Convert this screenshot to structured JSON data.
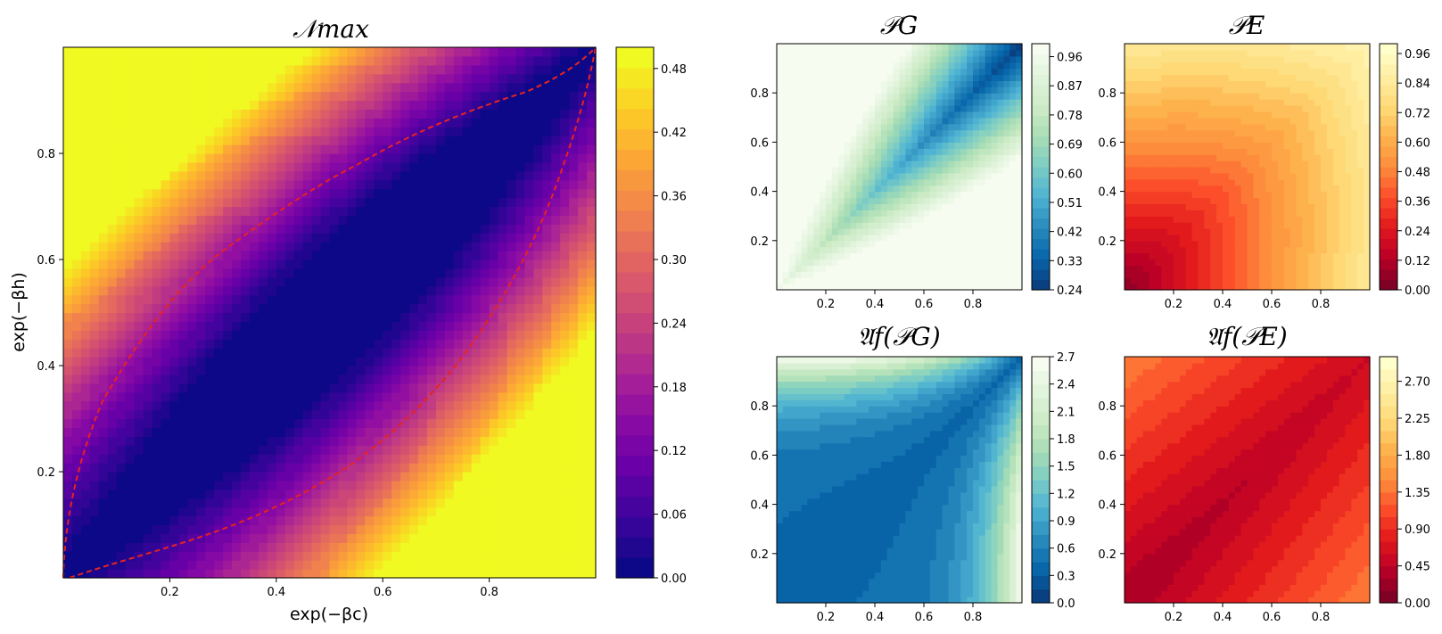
{
  "chart_data": [
    {
      "id": "nmax",
      "type": "heatmap",
      "title": "𝒩max",
      "xlabel": "exp(−βc)",
      "ylabel": "exp(−βh)",
      "xlim": [
        0,
        1
      ],
      "ylim": [
        0,
        1
      ],
      "xticks": [
        "0.2",
        "0.4",
        "0.6",
        "0.8"
      ],
      "yticks": [
        "0.2",
        "0.4",
        "0.6",
        "0.8"
      ],
      "colormap": "plasma",
      "colorbar": {
        "min": 0,
        "max": 0.5,
        "ticks": [
          "0.00",
          "0.06",
          "0.12",
          "0.18",
          "0.24",
          "0.30",
          "0.36",
          "0.42",
          "0.48"
        ]
      },
      "overlay": {
        "style": "dashed",
        "color": "#e8231f",
        "note": "boundary where 𝒩max = 0"
      },
      "colors": {
        "low": "#1e0a8c",
        "mid": "#cc4778",
        "high": "#f0f921"
      }
    },
    {
      "id": "pg",
      "type": "heatmap",
      "title": "𝒫G",
      "xlim": [
        0,
        1
      ],
      "ylim": [
        0,
        1
      ],
      "xticks": [
        "0.2",
        "0.4",
        "0.6",
        "0.8"
      ],
      "yticks": [
        "0.2",
        "0.4",
        "0.6",
        "0.8"
      ],
      "colormap": "GnBu_r",
      "colorbar": {
        "min": 0.24,
        "max": 1.0,
        "ticks": [
          "0.24",
          "0.33",
          "0.42",
          "0.51",
          "0.60",
          "0.69",
          "0.78",
          "0.87",
          "0.96"
        ]
      },
      "colors": {
        "low": "#084081",
        "mid": "#4eb3d3",
        "high": "#f7fcf0"
      }
    },
    {
      "id": "pe",
      "type": "heatmap",
      "title": "𝒫E",
      "xlim": [
        0,
        1
      ],
      "ylim": [
        0,
        1
      ],
      "xticks": [
        "0.2",
        "0.4",
        "0.6",
        "0.8"
      ],
      "yticks": [
        "0.2",
        "0.4",
        "0.6",
        "0.8"
      ],
      "colormap": "YlOrRd_r",
      "colorbar": {
        "min": 0,
        "max": 1.0,
        "ticks": [
          "0.00",
          "0.12",
          "0.24",
          "0.36",
          "0.48",
          "0.60",
          "0.72",
          "0.84",
          "0.96"
        ]
      },
      "colors": {
        "low": "#800026",
        "mid": "#fc4e2a",
        "high": "#ffffcc"
      }
    },
    {
      "id": "apg",
      "type": "heatmap",
      "title": "𝔄f(𝒫G)",
      "xlim": [
        0,
        1
      ],
      "ylim": [
        0,
        1
      ],
      "xticks": [
        "0.2",
        "0.4",
        "0.6",
        "0.8"
      ],
      "yticks": [
        "0.2",
        "0.4",
        "0.6",
        "0.8"
      ],
      "colormap": "GnBu_r",
      "colorbar": {
        "min": 0,
        "max": 2.7,
        "ticks": [
          "0.0",
          "0.3",
          "0.6",
          "0.9",
          "1.2",
          "1.5",
          "1.8",
          "2.1",
          "2.4",
          "2.7"
        ]
      },
      "colors": {
        "low": "#084081",
        "mid": "#4eb3d3",
        "high": "#f7fcf0"
      }
    },
    {
      "id": "ape",
      "type": "heatmap",
      "title": "𝔄f(𝒫E)",
      "xlim": [
        0,
        1
      ],
      "ylim": [
        0,
        1
      ],
      "xticks": [
        "0.2",
        "0.4",
        "0.6",
        "0.8"
      ],
      "yticks": [
        "0.2",
        "0.4",
        "0.6",
        "0.8"
      ],
      "colormap": "YlOrRd_r",
      "colorbar": {
        "min": 0,
        "max": 3.0,
        "ticks": [
          "0.00",
          "0.45",
          "0.90",
          "1.35",
          "1.80",
          "2.25",
          "2.70"
        ]
      },
      "colors": {
        "low": "#800026",
        "mid": "#fc4e2a",
        "high": "#ffffcc"
      }
    }
  ]
}
